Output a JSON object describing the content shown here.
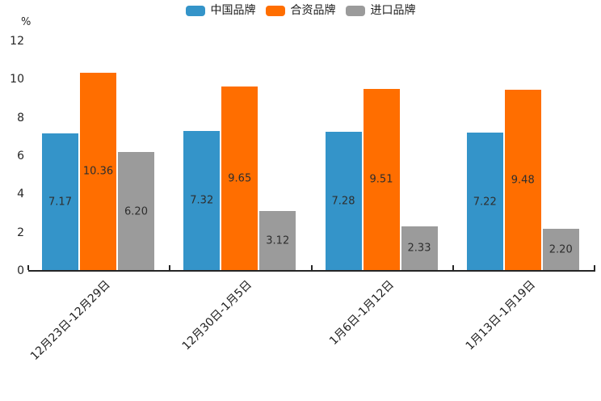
{
  "chart_data": {
    "type": "bar",
    "title": "",
    "categories": [
      "12月23日-12月29日",
      "12月30日-1月5日",
      "1月6日-1月12日",
      "1月13日-1月19日"
    ],
    "series": [
      {
        "name": "中国品牌",
        "color": "#3494c9",
        "values": [
          7.17,
          7.32,
          7.28,
          7.22
        ]
      },
      {
        "name": "合资品牌",
        "color": "#ff6e00",
        "values": [
          10.36,
          9.65,
          9.51,
          9.48
        ]
      },
      {
        "name": "进口品牌",
        "color": "#9b9b9b",
        "values": [
          6.2,
          3.12,
          2.33,
          2.2
        ]
      }
    ],
    "xlabel": "",
    "ylabel": "%",
    "ylim": [
      0,
      12
    ],
    "yticks": [
      0,
      2,
      4,
      6,
      8,
      10,
      12
    ],
    "grid": false,
    "legend_position": "top-center",
    "value_labels": "inside-center",
    "value_label_decimals": 2,
    "axis_color": "#262626",
    "background_color": "#ffffff"
  }
}
